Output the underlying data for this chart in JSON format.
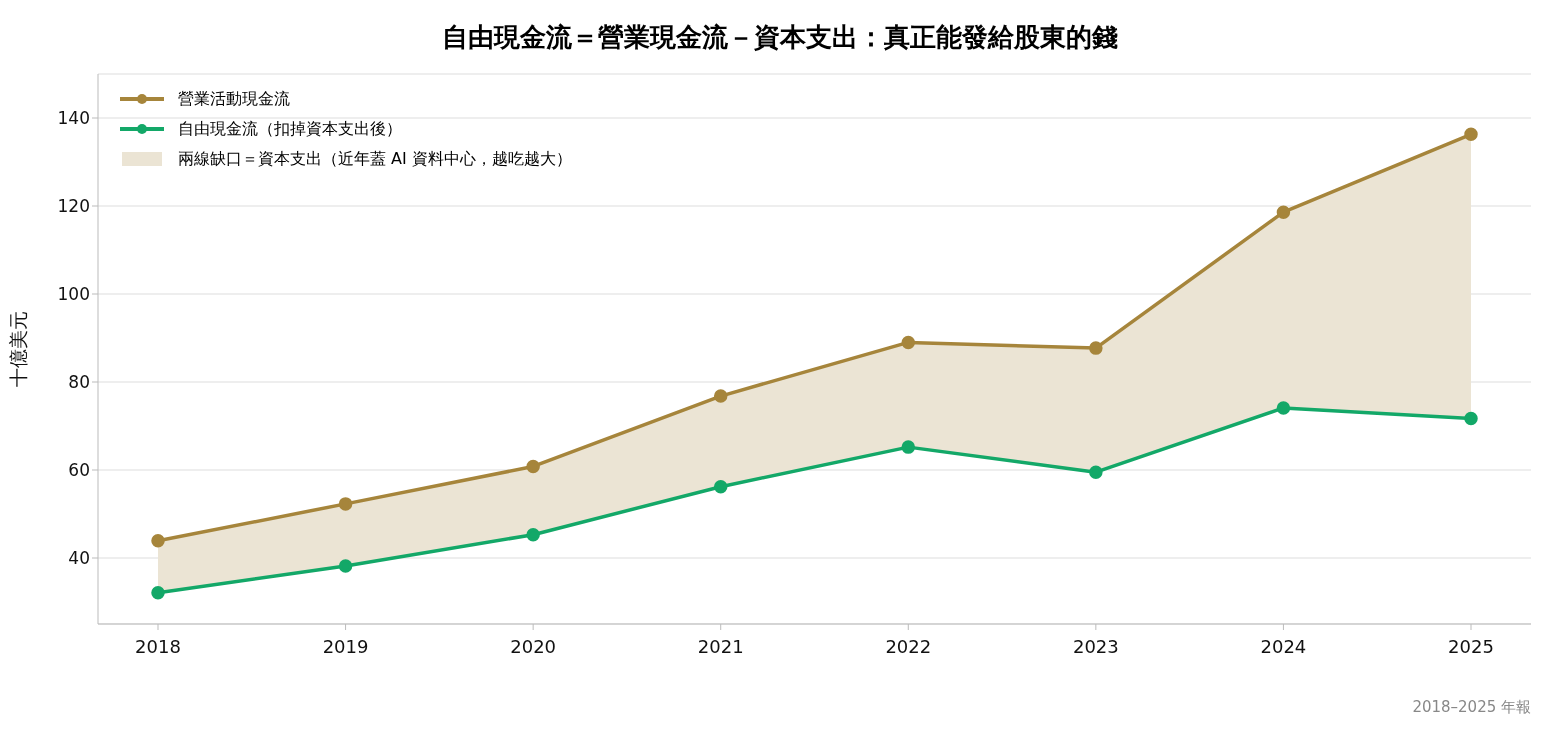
{
  "chart_data": {
    "type": "line",
    "title": "自由現金流＝營業現金流－資本支出：真正能發給股東的錢",
    "ylabel": "十億美元",
    "categories": [
      "2018",
      "2019",
      "2020",
      "2021",
      "2022",
      "2023",
      "2024",
      "2025"
    ],
    "series": [
      {
        "name": "營業活動現金流",
        "color": "#a6853b",
        "values": [
          43.9,
          52.3,
          60.8,
          76.8,
          89.0,
          87.7,
          118.6,
          136.3
        ],
        "lower": [
          32.1,
          38.2,
          45.3,
          56.2,
          65.2,
          59.5,
          74.1,
          71.7
        ],
        "upper": [
          43.9,
          52.3,
          60.8,
          76.8,
          89.0,
          87.7,
          118.6,
          136.3
        ]
      },
      {
        "name": "自由現金流（扣掉資本支出後）",
        "color": "#13a868",
        "values": [
          32.1,
          38.2,
          45.3,
          56.2,
          65.2,
          59.5,
          74.1,
          71.7
        ]
      }
    ],
    "ylim": [
      25,
      150
    ],
    "yticks": [
      40,
      60,
      80,
      100,
      120,
      140
    ],
    "grid": "y",
    "legend": "top left",
    "marker": "circle",
    "line_style": "solid",
    "annotations": [
      "兩線缺口＝資本支出（近年蓋 AI 資料中心，越吃越大）",
      "2018–2025 年報"
    ]
  }
}
